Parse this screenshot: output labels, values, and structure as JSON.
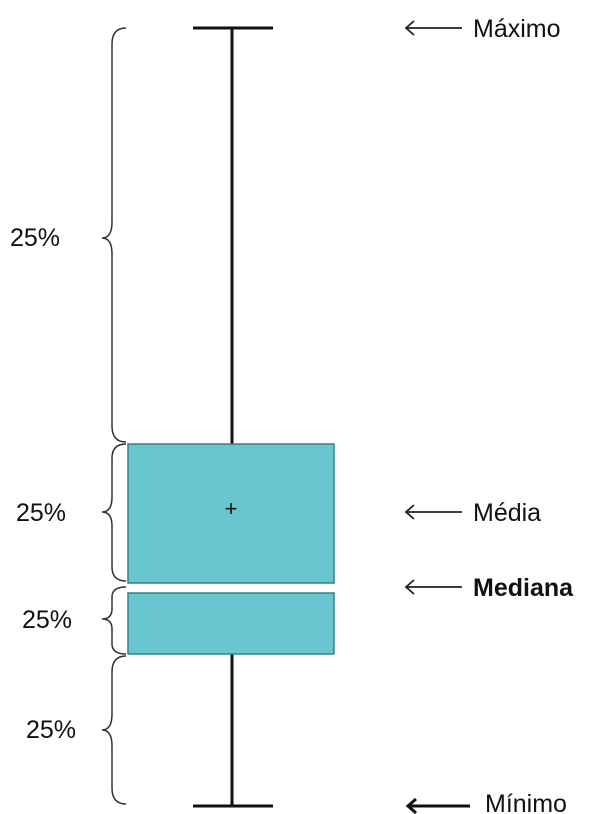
{
  "colors": {
    "box_fill": "#68c6d0",
    "box_stroke": "#3c7f88",
    "line": "#111111",
    "brace": "#333333"
  },
  "labels": {
    "maximo": "Máximo",
    "media": "Média",
    "mediana": "Mediana",
    "minimo": "Mínimo",
    "mean_marker": "+"
  },
  "quartiles": [
    {
      "label": "25%"
    },
    {
      "label": "25%"
    },
    {
      "label": "25%"
    },
    {
      "label": "25%"
    }
  ],
  "icons": {
    "pointer": "left-arrow-icon",
    "bracket": "curly-brace-icon"
  }
}
